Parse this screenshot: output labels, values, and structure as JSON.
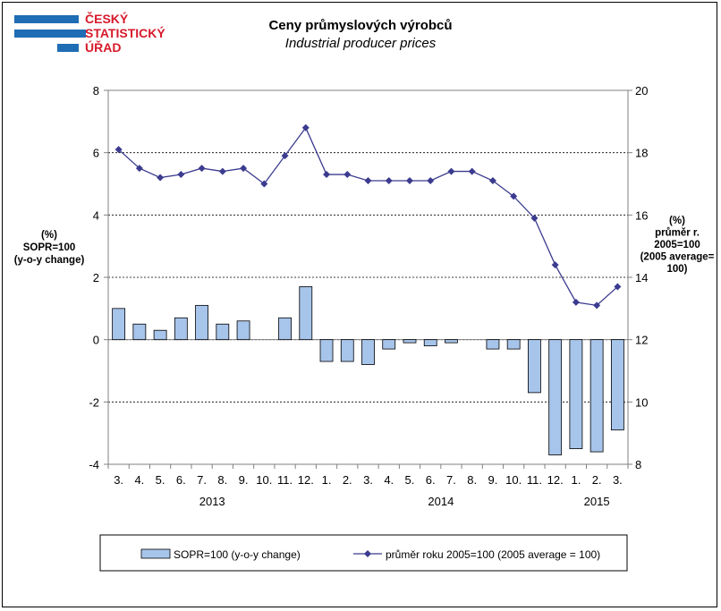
{
  "logo": {
    "lines": [
      "ČESKÝ",
      "STATISTICKÝ",
      "ÚŘAD"
    ],
    "bar_color": "#1f6db5",
    "text_color": "#d7192b"
  },
  "chart_data": {
    "type": "bar+line",
    "title": "Ceny průmyslových výrobců",
    "subtitle": "Industrial producer prices",
    "categories": [
      "3.",
      "4.",
      "5.",
      "6.",
      "7.",
      "8.",
      "9.",
      "10.",
      "11.",
      "12.",
      "1.",
      "2.",
      "3.",
      "4.",
      "5.",
      "6.",
      "7.",
      "8.",
      "9.",
      "10.",
      "11.",
      "12.",
      "1.",
      "2.",
      "3."
    ],
    "year_labels": [
      {
        "label": "2013",
        "index": 4.5
      },
      {
        "label": "2014",
        "index": 15.5
      },
      {
        "label": "2015",
        "index": 23
      }
    ],
    "left_axis": {
      "label_lines": [
        "(%)",
        "SOPR=100",
        "(y-o-y change)"
      ],
      "ylim": [
        -4,
        8
      ],
      "ticks": [
        -4,
        -2,
        0,
        2,
        4,
        6,
        8
      ]
    },
    "right_axis": {
      "label_lines": [
        "(%)",
        "průměr r.",
        "2005=100",
        "(2005 average=",
        "100)"
      ],
      "ylim": [
        8,
        20
      ],
      "ticks": [
        8,
        10,
        12,
        14,
        16,
        18,
        20
      ]
    },
    "grid": "horizontal dashed at left-axis ticks",
    "legend_position": "bottom",
    "series": [
      {
        "name": "SOPR=100 (y-o-y change)",
        "type": "bar",
        "axis": "left",
        "color": "#a7c4ea",
        "values": [
          1.0,
          0.5,
          0.3,
          0.7,
          1.1,
          0.5,
          0.6,
          0.0,
          0.7,
          1.7,
          -0.7,
          -0.7,
          -0.8,
          -0.3,
          -0.1,
          -0.2,
          -0.1,
          0.0,
          -0.3,
          -0.3,
          -1.7,
          -3.7,
          -3.5,
          -3.6,
          -2.9
        ]
      },
      {
        "name": "průměr roku 2005=100  (2005 average = 100)",
        "type": "line",
        "axis": "right",
        "color": "#3b3b8f",
        "values": [
          18.1,
          17.5,
          17.2,
          17.3,
          17.5,
          17.4,
          17.5,
          17.0,
          17.9,
          18.8,
          17.3,
          17.3,
          17.1,
          17.1,
          17.1,
          17.1,
          17.4,
          17.4,
          17.1,
          16.6,
          15.9,
          14.4,
          13.2,
          13.1,
          13.7
        ]
      }
    ]
  }
}
